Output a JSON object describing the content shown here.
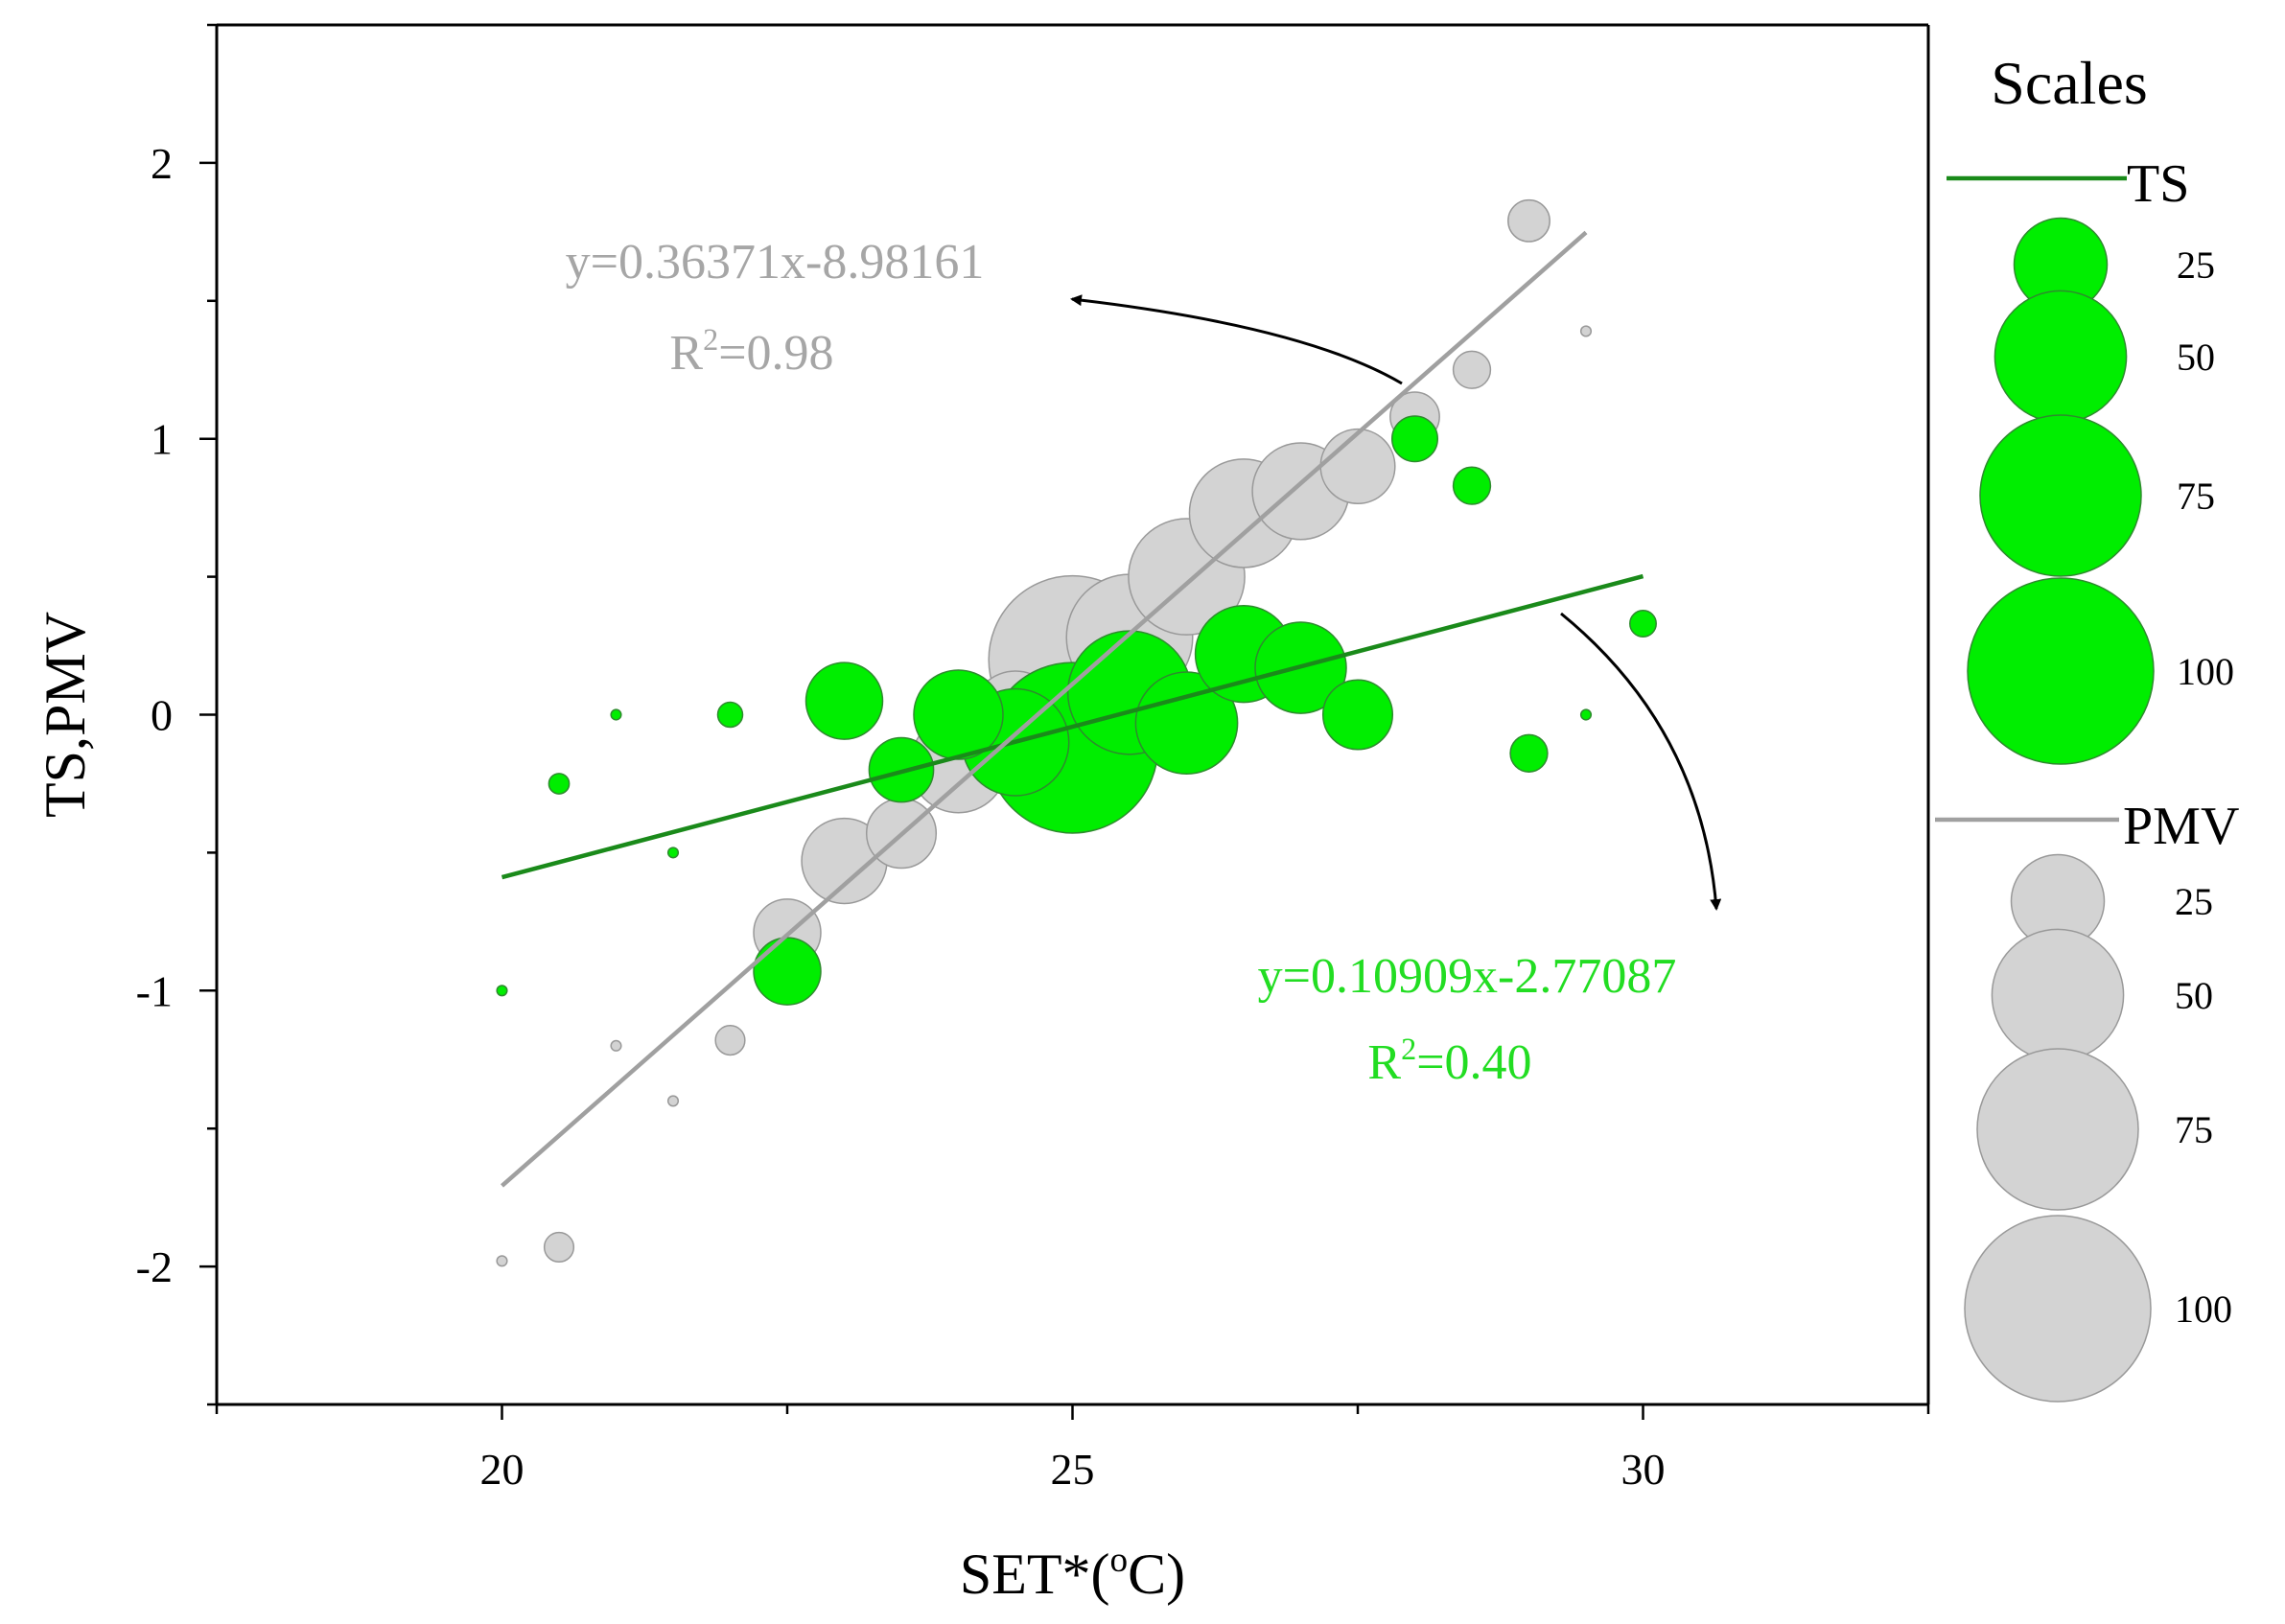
{
  "chart_data": {
    "type": "scatter",
    "subtype": "bubble",
    "xlabel": "SET*(oC)",
    "xlabel_main": "SET*(",
    "xlabel_sup": "o",
    "xlabel_end": "C)",
    "ylabel": "TS,PMV",
    "xlim": [
      17.5,
      32.5
    ],
    "ylim": [
      -2.5,
      2.5
    ],
    "x_ticks": [
      20,
      25,
      30
    ],
    "x_tick_labels": [
      "20",
      "25",
      "30"
    ],
    "y_ticks": [
      -2,
      -1,
      0,
      1,
      2
    ],
    "y_tick_labels": [
      "-2",
      "-1",
      "0",
      "1",
      "2"
    ],
    "grid": false,
    "colors": {
      "ts": "#00ee00",
      "ts_stroke": "#2e8b2e",
      "ts_line": "#1a8a1a",
      "ts_equation": "#22dd22",
      "pmv": "#d3d3d3",
      "pmv_stroke": "#999999",
      "pmv_line": "#a0a0a0",
      "pmv_equation": "#a6a6a6",
      "axis": "#000000"
    },
    "series": [
      {
        "name": "TS",
        "color_key": "ts",
        "points": [
          {
            "x": 20.0,
            "y": -1.0,
            "size": 0.3
          },
          {
            "x": 20.5,
            "y": -0.25,
            "size": 1.2
          },
          {
            "x": 21.0,
            "y": 0.0,
            "size": 0.3
          },
          {
            "x": 21.5,
            "y": -0.5,
            "size": 0.3
          },
          {
            "x": 22.0,
            "y": 0.0,
            "size": 1.8
          },
          {
            "x": 22.5,
            "y": -0.93,
            "size": 13
          },
          {
            "x": 23.0,
            "y": 0.05,
            "size": 17
          },
          {
            "x": 23.5,
            "y": -0.2,
            "size": 12
          },
          {
            "x": 24.0,
            "y": 0.0,
            "size": 23
          },
          {
            "x": 24.5,
            "y": -0.1,
            "size": 33
          },
          {
            "x": 25.0,
            "y": -0.12,
            "size": 84
          },
          {
            "x": 25.5,
            "y": 0.08,
            "size": 44
          },
          {
            "x": 26.0,
            "y": -0.03,
            "size": 30
          },
          {
            "x": 26.5,
            "y": 0.22,
            "size": 27
          },
          {
            "x": 27.0,
            "y": 0.17,
            "size": 24
          },
          {
            "x": 27.5,
            "y": 0.0,
            "size": 14
          },
          {
            "x": 28.0,
            "y": 1.0,
            "size": 6
          },
          {
            "x": 28.5,
            "y": 0.83,
            "size": 4
          },
          {
            "x": 29.0,
            "y": -0.14,
            "size": 4
          },
          {
            "x": 29.5,
            "y": 0.0,
            "size": 0.3
          },
          {
            "x": 30.0,
            "y": 0.33,
            "size": 2
          }
        ],
        "fit": {
          "slope": 0.10909,
          "intercept": -2.77087,
          "x_range": [
            20.0,
            30.0
          ]
        },
        "equation": "y=0.10909x-2.77087",
        "r2_prefix": "R",
        "r2_sup": "2",
        "r2_value": "=0.40"
      },
      {
        "name": "PMV",
        "color_key": "pmv",
        "points": [
          {
            "x": 20.0,
            "y": -1.98,
            "size": 0.3
          },
          {
            "x": 20.5,
            "y": -1.93,
            "size": 2.5
          },
          {
            "x": 21.0,
            "y": -1.2,
            "size": 0.3
          },
          {
            "x": 21.5,
            "y": -1.4,
            "size": 0.3
          },
          {
            "x": 22.0,
            "y": -1.18,
            "size": 2.5
          },
          {
            "x": 22.5,
            "y": -0.79,
            "size": 13
          },
          {
            "x": 23.0,
            "y": -0.53,
            "size": 21
          },
          {
            "x": 23.5,
            "y": -0.43,
            "size": 14
          },
          {
            "x": 24.0,
            "y": -0.18,
            "size": 27
          },
          {
            "x": 24.5,
            "y": 0.0,
            "size": 22
          },
          {
            "x": 25.0,
            "y": 0.2,
            "size": 81
          },
          {
            "x": 25.5,
            "y": 0.28,
            "size": 46
          },
          {
            "x": 26.0,
            "y": 0.5,
            "size": 39
          },
          {
            "x": 26.5,
            "y": 0.73,
            "size": 34
          },
          {
            "x": 27.0,
            "y": 0.81,
            "size": 27
          },
          {
            "x": 27.5,
            "y": 0.9,
            "size": 16
          },
          {
            "x": 28.0,
            "y": 1.08,
            "size": 7
          },
          {
            "x": 28.5,
            "y": 1.25,
            "size": 4
          },
          {
            "x": 29.0,
            "y": 1.79,
            "size": 5
          },
          {
            "x": 29.5,
            "y": 1.39,
            "size": 0.3
          }
        ],
        "fit": {
          "slope": 0.36371,
          "intercept": -8.98161,
          "x_range": [
            20.0,
            29.5
          ]
        },
        "equation": "y=0.36371x-8.98161",
        "r2_prefix": "R",
        "r2_sup": "2",
        "r2_value": "=0.98"
      }
    ],
    "legend": {
      "title": "Scales",
      "placement": "right",
      "groups": [
        {
          "name": "TS",
          "color_key": "ts",
          "sizes": [
            25,
            50,
            75,
            100
          ],
          "labels": [
            "25",
            "50",
            "75",
            "100"
          ]
        },
        {
          "name": "PMV",
          "color_key": "pmv",
          "sizes": [
            25,
            50,
            75,
            100
          ],
          "labels": [
            "25",
            "50",
            "75",
            "100"
          ]
        }
      ]
    }
  }
}
